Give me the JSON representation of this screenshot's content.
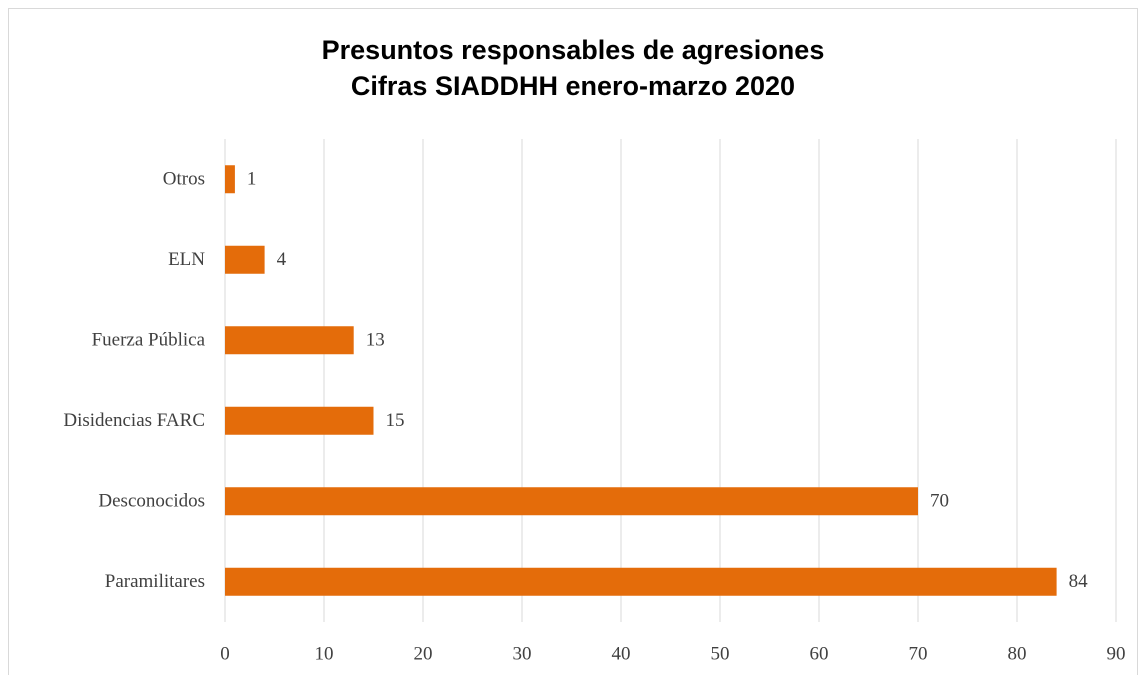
{
  "chart_data": {
    "type": "barh",
    "title": "Presuntos responsables de agresiones",
    "subtitle": "Cifras SIADDHH enero-marzo 2020",
    "categories": [
      "Otros",
      "ELN",
      "Fuerza Pública",
      "Disidencias FARC",
      "Desconocidos",
      "Paramilitares"
    ],
    "values": [
      1,
      4,
      13,
      15,
      70,
      84
    ],
    "color": "#e46c0a",
    "xlim": [
      0,
      90
    ],
    "xticks": [
      0,
      10,
      20,
      30,
      40,
      50,
      60,
      70,
      80,
      90
    ],
    "grid": true
  }
}
